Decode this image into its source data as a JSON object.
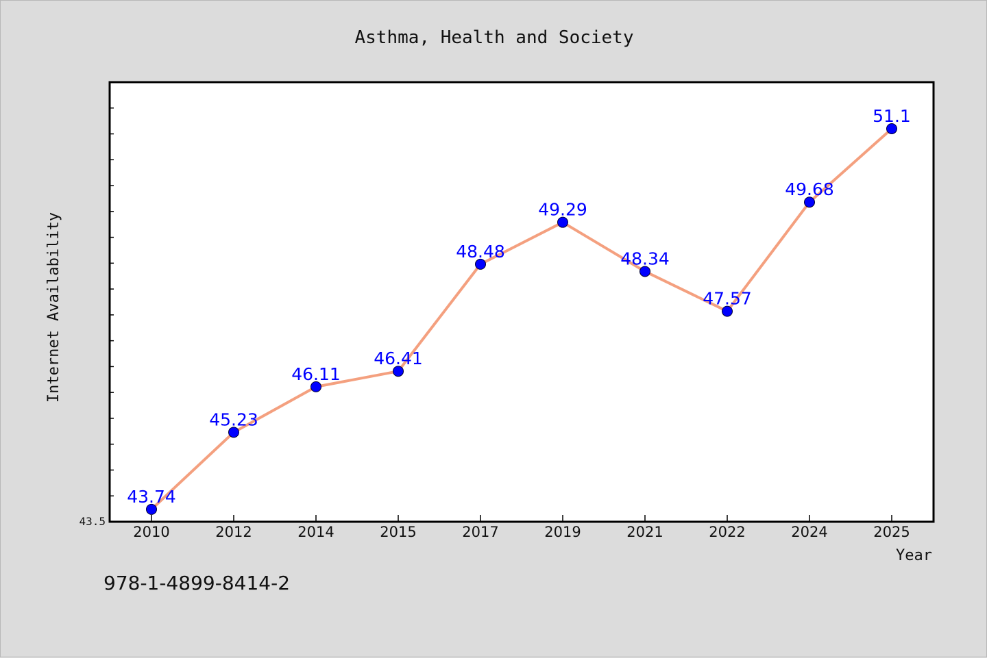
{
  "chart_data": {
    "type": "line",
    "title": "Asthma, Health and Society",
    "xlabel": "Year",
    "ylabel": "Internet Availability",
    "categories": [
      "2010",
      "2012",
      "2014",
      "2015",
      "2017",
      "2019",
      "2021",
      "2022",
      "2024",
      "2025"
    ],
    "series": [
      {
        "values": [
          43.74,
          45.23,
          46.11,
          46.41,
          48.48,
          49.29,
          48.34,
          47.57,
          49.68,
          51.1
        ],
        "labels": [
          "43.74",
          "45.23",
          "46.11",
          "46.41",
          "48.48",
          "49.29",
          "48.34",
          "47.57",
          "49.68",
          "51.1"
        ]
      }
    ],
    "y_tick_labels": [
      {
        "value": 43.5,
        "label": "43.5"
      }
    ],
    "ylim": [
      43.5,
      52.0
    ],
    "grid": false,
    "line_color": "#f4a07f",
    "marker_color": "#0000ff",
    "label_color": "#0000ff"
  },
  "footer": {
    "isbn": "978-1-4899-8414-2"
  }
}
